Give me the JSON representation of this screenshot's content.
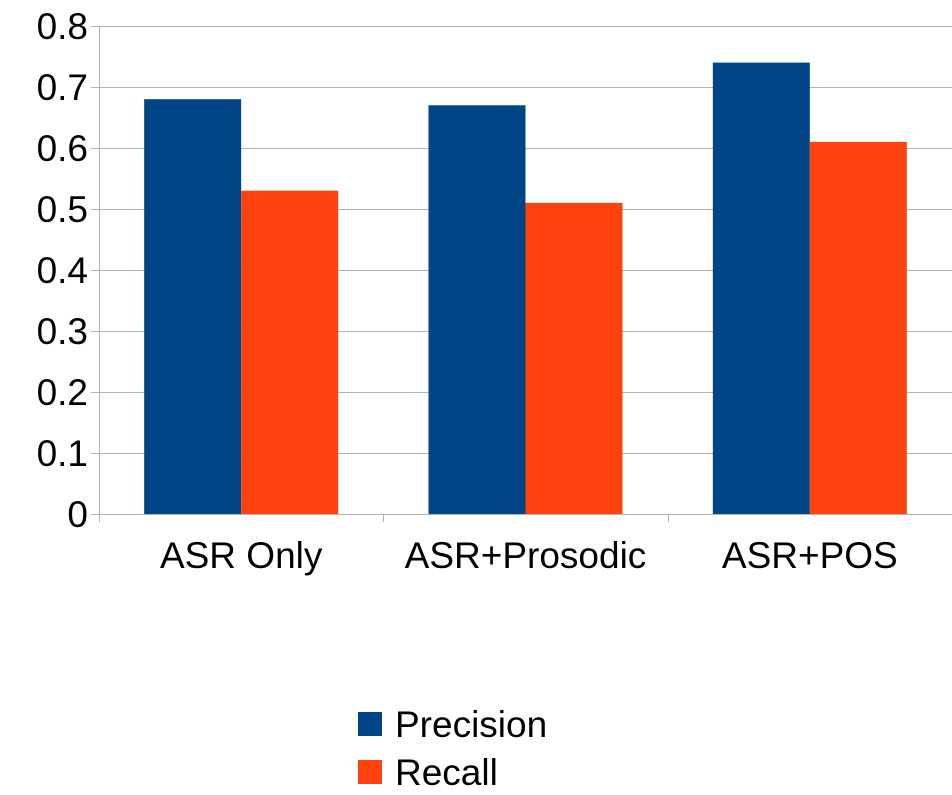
{
  "chart_data": {
    "type": "bar",
    "title": "",
    "xlabel": "",
    "ylabel": "",
    "categories": [
      "ASR Only",
      "ASR+Prosodic",
      "ASR+POS"
    ],
    "series": [
      {
        "name": "Precision",
        "values": [
          0.68,
          0.67,
          0.74
        ],
        "color": "#004586"
      },
      {
        "name": "Recall",
        "values": [
          0.53,
          0.51,
          0.61
        ],
        "color": "#ff420e"
      }
    ],
    "ylim": [
      0,
      0.8
    ],
    "yticks": [
      "0",
      "0.1",
      "0.2",
      "0.3",
      "0.4",
      "0.5",
      "0.6",
      "0.7",
      "0.8"
    ],
    "grid": true,
    "legend_position": "bottom"
  }
}
